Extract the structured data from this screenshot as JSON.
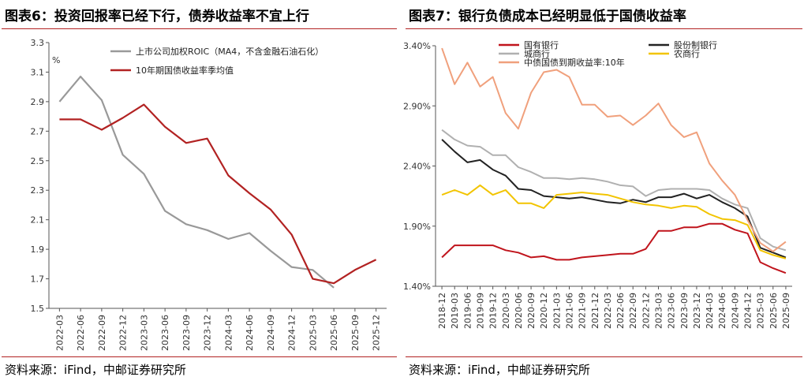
{
  "left": {
    "title": "图表6：投资回报率已经下行，债券收益率不宜上行",
    "source": "资料来源：iFind，中邮证券研究所",
    "chart_data": {
      "type": "line",
      "ylabel": "%",
      "ylim": [
        1.5,
        3.3
      ],
      "yticks": [
        "3.3",
        "3.1",
        "2.9",
        "2.7",
        "2.5",
        "2.3",
        "2.1",
        "1.9",
        "1.7",
        "1.5"
      ],
      "x": [
        "2022-03",
        "2022-06",
        "2022-09",
        "2022-12",
        "2023-03",
        "2023-06",
        "2023-09",
        "2023-12",
        "2024-03",
        "2024-06",
        "2024-09",
        "2024-12",
        "2025-03",
        "2025-06",
        "2025-09",
        "2025-12"
      ],
      "legend_position": "top-right",
      "series": [
        {
          "name": "上市公司加权ROIC（MA4，不含金融石油石化）",
          "color": "#999999",
          "values": [
            2.9,
            3.07,
            2.91,
            2.54,
            2.41,
            2.16,
            2.07,
            2.03,
            1.97,
            2.01,
            1.89,
            1.78,
            1.76,
            1.64,
            null,
            null
          ]
        },
        {
          "name": "10年期国债收益率季均值",
          "color": "#b22222",
          "values": [
            2.78,
            2.78,
            2.71,
            2.79,
            2.88,
            2.73,
            2.62,
            2.65,
            2.4,
            2.28,
            2.17,
            2.0,
            1.7,
            1.67,
            1.76,
            1.83
          ]
        }
      ]
    }
  },
  "right": {
    "title": "图表7：银行负债成本已经明显低于国债收益率",
    "source": "资料来源：iFind，中邮证券研究所",
    "chart_data": {
      "type": "line",
      "ylim": [
        1.4,
        3.4
      ],
      "yticks": [
        "3.40%",
        "2.90%",
        "2.40%",
        "1.90%",
        "1.40%"
      ],
      "x": [
        "2018-12",
        "2019-03",
        "2019-06",
        "2019-09",
        "2019-12",
        "2020-03",
        "2020-06",
        "2020-09",
        "2020-12",
        "2021-03",
        "2021-06",
        "2021-09",
        "2021-12",
        "2022-03",
        "2022-06",
        "2022-09",
        "2022-12",
        "2023-03",
        "2023-06",
        "2023-09",
        "2023-12",
        "2024-03",
        "2024-06",
        "2024-09",
        "2024-12",
        "2025-03",
        "2025-06",
        "2025-09"
      ],
      "x_tick_labels": [
        "2018-12",
        "2019-03",
        "2019-06",
        "2019-09",
        "2019-12",
        "2020-03",
        "2020-06",
        "2020-09",
        "2020-12",
        "2021-03",
        "2021-06",
        "2021-09",
        "2021-12",
        "2022-03",
        "2022-06",
        "2022-09",
        "2022-12",
        "2023-03",
        "2023-06",
        "2023-09",
        "2023-12",
        "2024-03",
        "2024-06",
        "2024-09",
        "2024-12",
        "2025-03",
        "2025-06",
        "2025-09"
      ],
      "legend_position": "top",
      "series": [
        {
          "name": "国有银行",
          "color": "#c0141c",
          "values": [
            1.64,
            1.74,
            1.74,
            1.74,
            1.74,
            1.7,
            1.68,
            1.64,
            1.65,
            1.62,
            1.62,
            1.64,
            1.65,
            1.66,
            1.67,
            1.67,
            1.71,
            1.86,
            1.86,
            1.89,
            1.89,
            1.92,
            1.92,
            1.87,
            1.84,
            1.6,
            1.55,
            1.51
          ]
        },
        {
          "name": "股份制银行",
          "color": "#222222",
          "values": [
            2.62,
            2.52,
            2.43,
            2.45,
            2.37,
            2.32,
            2.21,
            2.2,
            2.15,
            2.14,
            2.13,
            2.14,
            2.12,
            2.1,
            2.09,
            2.12,
            2.1,
            2.14,
            2.14,
            2.17,
            2.13,
            2.16,
            2.1,
            2.05,
            1.98,
            1.72,
            1.68,
            1.64
          ]
        },
        {
          "name": "城商行",
          "color": "#b0b0b0",
          "values": [
            2.7,
            2.62,
            2.57,
            2.56,
            2.49,
            2.49,
            2.39,
            2.35,
            2.3,
            2.3,
            2.29,
            2.3,
            2.29,
            2.27,
            2.24,
            2.23,
            2.15,
            2.2,
            2.21,
            2.21,
            2.21,
            2.2,
            2.13,
            2.08,
            2.05,
            1.8,
            1.73,
            1.7
          ]
        },
        {
          "name": "农商行",
          "color": "#f2c400",
          "values": [
            2.16,
            2.2,
            2.16,
            2.24,
            2.16,
            2.2,
            2.09,
            2.09,
            2.05,
            2.16,
            2.17,
            2.18,
            2.17,
            2.16,
            2.13,
            2.1,
            2.08,
            2.07,
            2.05,
            2.07,
            2.06,
            2.0,
            1.96,
            1.95,
            1.91,
            1.7,
            1.66,
            1.63
          ]
        },
        {
          "name": "中债国债到期收益率:10年",
          "color": "#f0a07c",
          "values": [
            3.38,
            3.08,
            3.26,
            3.06,
            3.14,
            2.84,
            2.71,
            3.01,
            3.18,
            3.2,
            3.14,
            2.91,
            2.91,
            2.81,
            2.82,
            2.74,
            2.82,
            2.92,
            2.74,
            2.64,
            2.68,
            2.42,
            2.28,
            2.16,
            1.95,
            1.76,
            1.69,
            1.77
          ]
        }
      ]
    }
  }
}
